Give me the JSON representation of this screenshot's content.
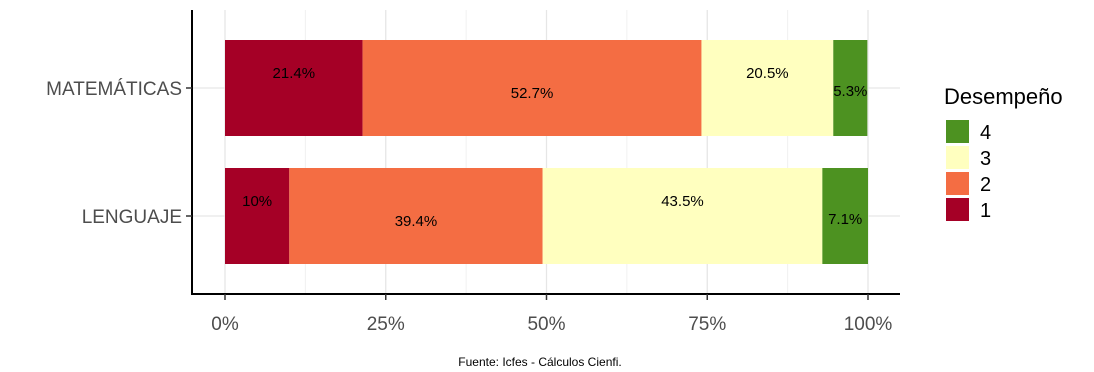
{
  "chart_data": {
    "type": "bar",
    "orientation": "horizontal",
    "stacked": true,
    "categories": [
      "MATEMÁTICAS",
      "LENGUAJE"
    ],
    "x_ticks": [
      "0%",
      "25%",
      "50%",
      "75%",
      "100%"
    ],
    "xlim": [
      0,
      100
    ],
    "grid": true,
    "legend": {
      "title": "Desempeño",
      "placement": "right",
      "entries": [
        "4",
        "3",
        "2",
        "1"
      ]
    },
    "series": [
      {
        "name": "1",
        "color": "#a50026",
        "values": [
          21.4,
          10.0
        ],
        "labels": [
          "21.4%",
          "10%"
        ]
      },
      {
        "name": "2",
        "color": "#f46d43",
        "values": [
          52.7,
          39.4
        ],
        "labels": [
          "52.7%",
          "39.4%"
        ]
      },
      {
        "name": "3",
        "color": "#ffffbf",
        "values": [
          20.5,
          43.5
        ],
        "labels": [
          "20.5%",
          "43.5%"
        ]
      },
      {
        "name": "4",
        "color": "#4d9221",
        "values": [
          5.3,
          7.1
        ],
        "labels": [
          "5.3%",
          "7.1%"
        ]
      }
    ],
    "caption": "Fuente: Icfes - Cálculos Cienfi."
  }
}
